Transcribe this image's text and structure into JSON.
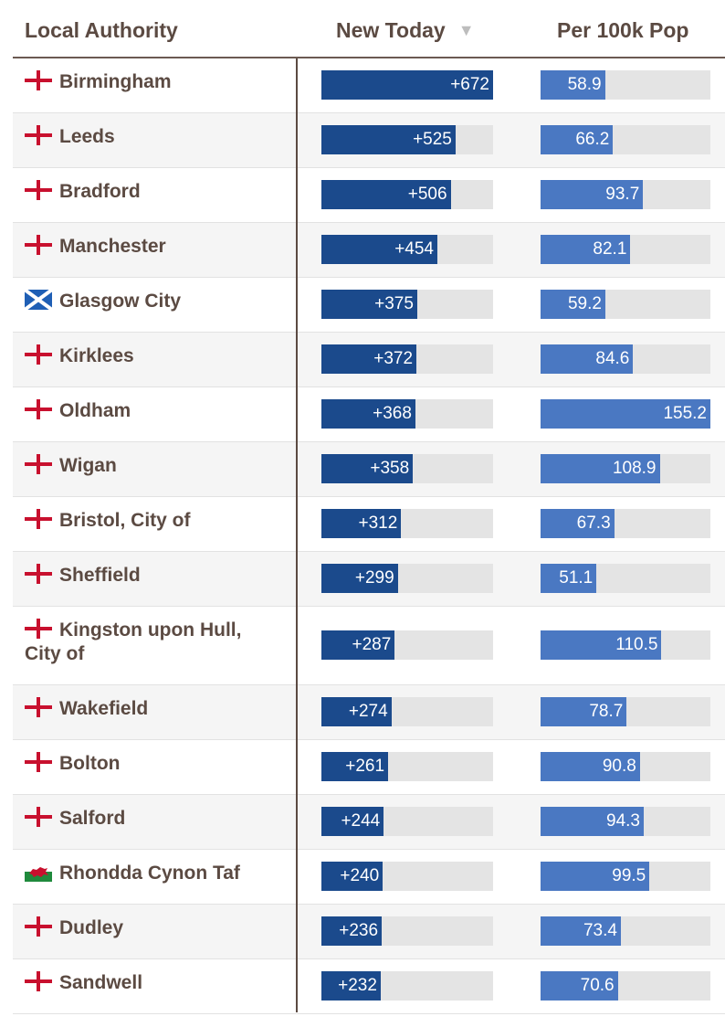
{
  "header": {
    "authority": "Local Authority",
    "new_today": "New Today",
    "sort_arrow": "▼",
    "per_100k": "Per 100k Pop"
  },
  "colors": {
    "new_bar": "#1b4a8c",
    "pop_bar": "#4a78c2",
    "track": "#e4e4e4",
    "text": "#5b4a42"
  },
  "chart_data": {
    "type": "table",
    "columns": [
      "Local Authority",
      "New Today",
      "Per 100k Pop"
    ],
    "new_max": 672,
    "pop_max": 155.2,
    "rows": [
      {
        "name": "Birmingham",
        "nation": "england",
        "new_label": "+672",
        "new_value": 672,
        "pop_label": "58.9",
        "pop_value": 58.9
      },
      {
        "name": "Leeds",
        "nation": "england",
        "new_label": "+525",
        "new_value": 525,
        "pop_label": "66.2",
        "pop_value": 66.2
      },
      {
        "name": "Bradford",
        "nation": "england",
        "new_label": "+506",
        "new_value": 506,
        "pop_label": "93.7",
        "pop_value": 93.7
      },
      {
        "name": "Manchester",
        "nation": "england",
        "new_label": "+454",
        "new_value": 454,
        "pop_label": "82.1",
        "pop_value": 82.1
      },
      {
        "name": "Glasgow City",
        "nation": "scotland",
        "new_label": "+375",
        "new_value": 375,
        "pop_label": "59.2",
        "pop_value": 59.2
      },
      {
        "name": "Kirklees",
        "nation": "england",
        "new_label": "+372",
        "new_value": 372,
        "pop_label": "84.6",
        "pop_value": 84.6
      },
      {
        "name": "Oldham",
        "nation": "england",
        "new_label": "+368",
        "new_value": 368,
        "pop_label": "155.2",
        "pop_value": 155.2
      },
      {
        "name": "Wigan",
        "nation": "england",
        "new_label": "+358",
        "new_value": 358,
        "pop_label": "108.9",
        "pop_value": 108.9
      },
      {
        "name": "Bristol, City of",
        "nation": "england",
        "new_label": "+312",
        "new_value": 312,
        "pop_label": "67.3",
        "pop_value": 67.3
      },
      {
        "name": "Sheffield",
        "nation": "england",
        "new_label": "+299",
        "new_value": 299,
        "pop_label": "51.1",
        "pop_value": 51.1
      },
      {
        "name": "Kingston upon Hull, City of",
        "nation": "england",
        "new_label": "+287",
        "new_value": 287,
        "pop_label": "110.5",
        "pop_value": 110.5
      },
      {
        "name": "Wakefield",
        "nation": "england",
        "new_label": "+274",
        "new_value": 274,
        "pop_label": "78.7",
        "pop_value": 78.7
      },
      {
        "name": "Bolton",
        "nation": "england",
        "new_label": "+261",
        "new_value": 261,
        "pop_label": "90.8",
        "pop_value": 90.8
      },
      {
        "name": "Salford",
        "nation": "england",
        "new_label": "+244",
        "new_value": 244,
        "pop_label": "94.3",
        "pop_value": 94.3
      },
      {
        "name": "Rhondda Cynon Taf",
        "nation": "wales",
        "new_label": "+240",
        "new_value": 240,
        "pop_label": "99.5",
        "pop_value": 99.5
      },
      {
        "name": "Dudley",
        "nation": "england",
        "new_label": "+236",
        "new_value": 236,
        "pop_label": "73.4",
        "pop_value": 73.4
      },
      {
        "name": "Sandwell",
        "nation": "england",
        "new_label": "+232",
        "new_value": 232,
        "pop_label": "70.6",
        "pop_value": 70.6
      }
    ]
  }
}
